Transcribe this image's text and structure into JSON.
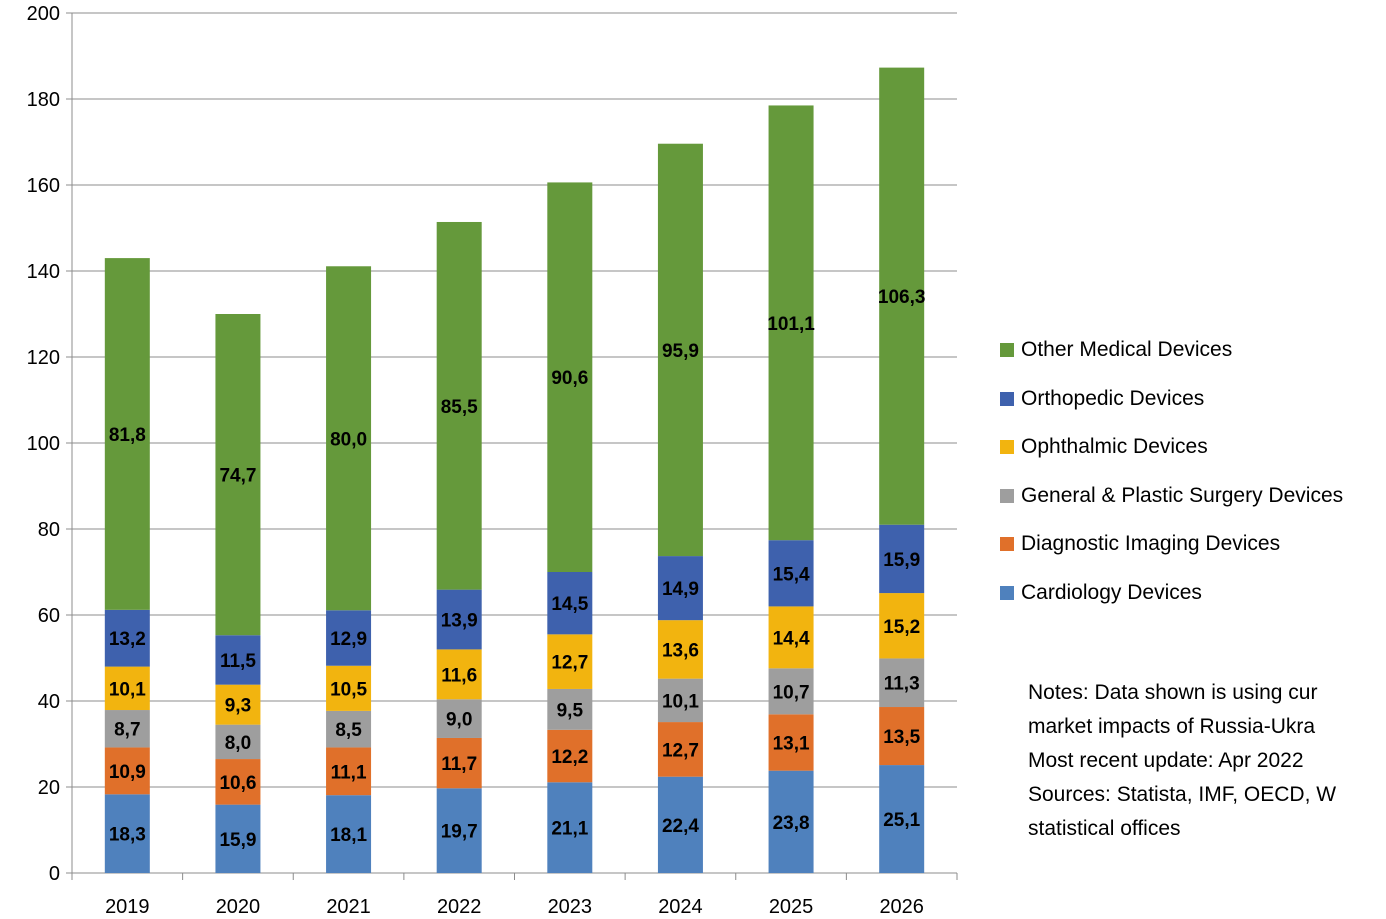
{
  "chart_data": {
    "type": "bar",
    "stacked": true,
    "categories": [
      "2019",
      "2020",
      "2021",
      "2022",
      "2023",
      "2024",
      "2025",
      "2026"
    ],
    "ylim": [
      0,
      200
    ],
    "yticks": [
      0,
      20,
      40,
      60,
      80,
      100,
      120,
      140,
      160,
      180,
      200
    ],
    "grid": true,
    "legend_position": "right",
    "series": [
      {
        "name": "Cardiology Devices",
        "color": "#4f81bd",
        "values": [
          18.3,
          15.9,
          18.1,
          19.7,
          21.1,
          22.4,
          23.8,
          25.1
        ],
        "labels": [
          "18,3",
          "15,9",
          "18,1",
          "19,7",
          "21,1",
          "22,4",
          "23,8",
          "25,1"
        ]
      },
      {
        "name": "Diagnostic Imaging Devices",
        "color": "#e0702a",
        "values": [
          10.9,
          10.6,
          11.1,
          11.7,
          12.2,
          12.7,
          13.1,
          13.5
        ],
        "labels": [
          "10,9",
          "10,6",
          "11,1",
          "11,7",
          "12,2",
          "12,7",
          "13,1",
          "13,5"
        ]
      },
      {
        "name": "General & Plastic Surgery Devices",
        "color": "#9e9e9e",
        "values": [
          8.7,
          8.0,
          8.5,
          9.0,
          9.5,
          10.1,
          10.7,
          11.3
        ],
        "labels": [
          "8,7",
          "8,0",
          "8,5",
          "9,0",
          "9,5",
          "10,1",
          "10,7",
          "11,3"
        ]
      },
      {
        "name": "Ophthalmic Devices",
        "color": "#f2b40f",
        "values": [
          10.1,
          9.3,
          10.5,
          11.6,
          12.7,
          13.6,
          14.4,
          15.2
        ],
        "labels": [
          "10,1",
          "9,3",
          "10,5",
          "11,6",
          "12,7",
          "13,6",
          "14,4",
          "15,2"
        ]
      },
      {
        "name": "Orthopedic Devices",
        "color": "#3e61ad",
        "values": [
          13.2,
          11.5,
          12.9,
          13.9,
          14.5,
          14.9,
          15.4,
          15.9
        ],
        "labels": [
          "13,2",
          "11,5",
          "12,9",
          "13,9",
          "14,5",
          "14,9",
          "15,4",
          "15,9"
        ]
      },
      {
        "name": "Other Medical Devices",
        "color": "#65993b",
        "values": [
          81.8,
          74.7,
          80.0,
          85.5,
          90.6,
          95.9,
          101.1,
          106.3
        ],
        "labels": [
          "81,8",
          "74,7",
          "80,0",
          "85,5",
          "90,6",
          "95,9",
          "101,1",
          "106,3"
        ]
      }
    ]
  },
  "legend": {
    "items": [
      {
        "label": "Other Medical Devices",
        "color": "#65993b"
      },
      {
        "label": "Orthopedic Devices",
        "color": "#3e61ad"
      },
      {
        "label": "Ophthalmic Devices",
        "color": "#f2b40f"
      },
      {
        "label": "General & Plastic Surgery Devices",
        "color": "#9e9e9e"
      },
      {
        "label": "Diagnostic Imaging Devices",
        "color": "#e0702a"
      },
      {
        "label": "Cardiology Devices",
        "color": "#4f81bd"
      }
    ]
  },
  "notes": {
    "lines": [
      "Notes: Data shown is using cur",
      "market impacts of Russia-Ukra",
      "Most recent update: Apr 2022",
      "Sources: Statista, IMF, OECD, W",
      "statistical offices"
    ]
  }
}
